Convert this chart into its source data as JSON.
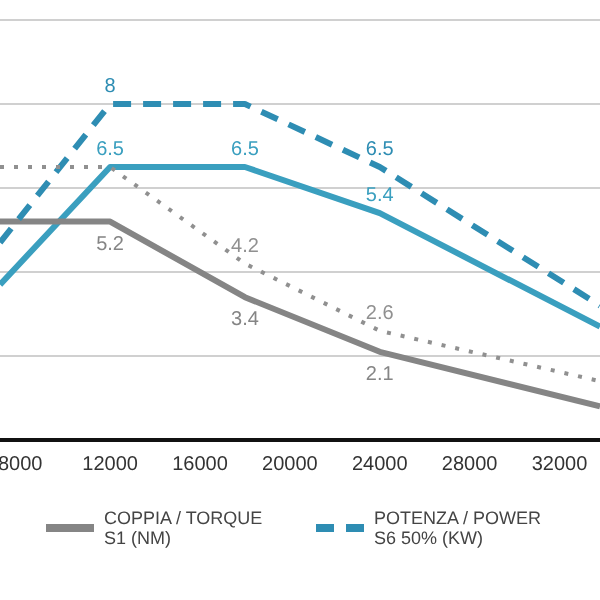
{
  "chart_data": {
    "type": "line",
    "x": [
      7100,
      12000,
      18000,
      24000,
      33800
    ],
    "xlim": [
      7100,
      33800
    ],
    "xticks": [
      8000,
      12000,
      16000,
      20000,
      24000,
      28000,
      32000
    ],
    "ylim": [
      0,
      10
    ],
    "yticks": [
      {
        "value": 0,
        "label": null
      },
      {
        "value": 2,
        "label": null
      },
      {
        "value": 4,
        "label": null
      },
      {
        "value": 6,
        "label": null
      },
      {
        "value": 8,
        "label": null
      },
      {
        "value": 10,
        "label": null
      }
    ],
    "tick_labels": "x",
    "grid": "y",
    "legend": "bottom",
    "marker": "none",
    "series": [
      {
        "color": "#3a9fbf",
        "line_style": "solid",
        "values": [
          3.7,
          6.5,
          6.5,
          5.4,
          2.7
        ],
        "value_labels": [
          null,
          "6.5",
          "6.5",
          "5.4",
          null
        ]
      },
      {
        "name": "COPPIA / TORQUE S1 (NM)",
        "color": "#858585",
        "line_style": "solid",
        "values": [
          5.2,
          5.2,
          3.4,
          2.1,
          0.8
        ],
        "value_labels": [
          null,
          "5.2",
          "3.4",
          "2.1",
          null
        ]
      },
      {
        "name": "POTENZA / POWER S6 50% (KW)",
        "color": "#2e8db3",
        "line_style": "dashed",
        "values": [
          4.7,
          8,
          8,
          6.5,
          3.2
        ],
        "value_labels": [
          null,
          "8",
          null,
          "6.5",
          null
        ]
      },
      {
        "color": "#909090",
        "line_style": "dotted",
        "values": [
          6.5,
          6.5,
          4.2,
          2.6,
          1.4
        ],
        "value_labels": [
          null,
          null,
          "4.2",
          "2.6",
          null
        ]
      }
    ]
  }
}
